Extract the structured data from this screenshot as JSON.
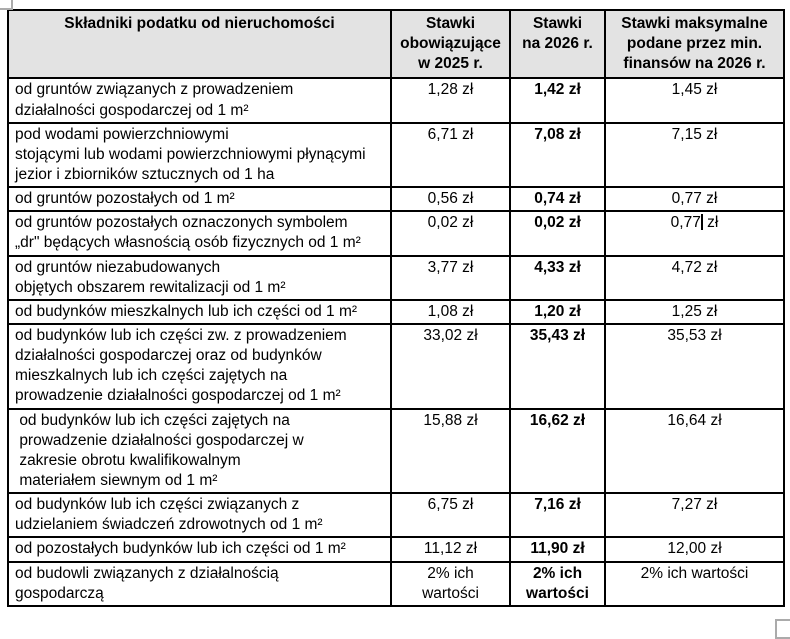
{
  "colors": {
    "header_bg": "#e3e3e3",
    "border": "#000000",
    "handle_gray": "#ababab",
    "text": "#000000"
  },
  "table": {
    "header": {
      "component": "Składniki podatku od nieruchomości",
      "rate_2025": "Stawki\nobowiązujące\nw 2025 r.",
      "rate_2026": "Stawki\nna 2026 r.",
      "rate_max": "Stawki maksymalne\npodane przez min.\nfinansów na 2026 r."
    },
    "rows": [
      {
        "label": "od gruntów związanych z prowadzeniem\ndziałalności gospodarczej od 1 m²",
        "rate_2025": "1,28 zł",
        "rate_2026": "1,42 zł",
        "rate_max": "1,45 zł"
      },
      {
        "label": "pod wodami powierzchniowymi\nstojącymi lub wodami powierzchniowymi płynącymi\njezior i zbiorników sztucznych od 1 ha",
        "rate_2025": "6,71 zł",
        "rate_2026": "7,08 zł",
        "rate_max": "7,15 zł"
      },
      {
        "label": "od gruntów pozostałych od 1 m²",
        "rate_2025": "0,56 zł",
        "rate_2026": "0,74 zł",
        "rate_max": "0,77 zł"
      },
      {
        "label": "od gruntów pozostałych oznaczonych symbolem\n„dr\" będących własnością osób fizycznych od 1 m²",
        "rate_2025": "0,02 zł",
        "rate_2026": "0,02 zł",
        "rate_max": "0,77 zł",
        "caret": true,
        "rate_max_before_caret": "0,77",
        "rate_max_after_caret": " zł"
      },
      {
        "label": "od gruntów niezabudowanych\nobjętych obszarem rewitalizacji od 1 m²",
        "rate_2025": "3,77 zł",
        "rate_2026": "4,33 zł",
        "rate_max": "4,72 zł"
      },
      {
        "label": "od budynków mieszkalnych lub ich części od 1 m²",
        "rate_2025": "1,08 zł",
        "rate_2026": "1,20 zł",
        "rate_max": "1,25 zł"
      },
      {
        "label": "od budynków lub ich części zw. z prowadzeniem\ndziałalności gospodarczej oraz od budynków\nmieszkalnych lub ich części zajętych na\nprowadzenie działalności gospodarczej od 1 m²",
        "rate_2025": "33,02 zł",
        "rate_2026": "35,43 zł",
        "rate_max": "35,53 zł"
      },
      {
        "label": " od budynków lub ich części zajętych na\n prowadzenie działalności gospodarczej w\n zakresie obrotu kwalifikowalnym\n materiałem siewnym od 1 m²",
        "rate_2025": "15,88 zł",
        "rate_2026": "16,62 zł",
        "rate_max": "16,64 zł"
      },
      {
        "label": "od budynków lub ich części związanych z\nudzielaniem świadczeń zdrowotnych od 1 m²",
        "rate_2025": "6,75 zł",
        "rate_2026": "7,16 zł",
        "rate_max": "7,27 zł"
      },
      {
        "label": "od pozostałych budynków lub ich części od 1 m²",
        "rate_2025": "11,12 zł",
        "rate_2026": "11,90 zł",
        "rate_max": "12,00 zł"
      },
      {
        "label": "od budowli związanych z działalnością\ngospodarczą",
        "rate_2025": "2% ich\nwartości",
        "rate_2026": "2% ich\nwartości",
        "rate_max": "2% ich wartości"
      }
    ]
  }
}
